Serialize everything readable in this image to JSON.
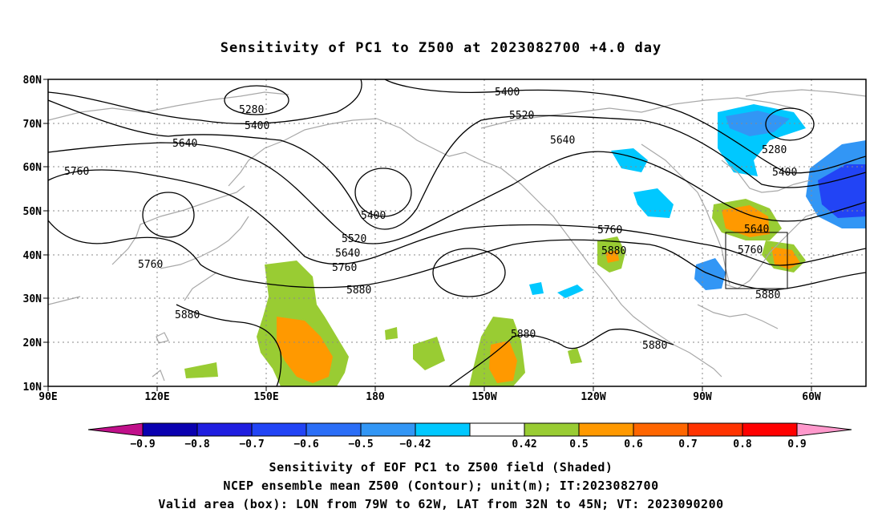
{
  "title": "Sensitivity of PC1 to Z500 at 2023082700 +4.0 day",
  "lat_labels": [
    "80N",
    "70N",
    "60N",
    "50N",
    "40N",
    "30N",
    "20N",
    "10N"
  ],
  "lon_labels": [
    "90E",
    "120E",
    "150E",
    "180",
    "150W",
    "120W",
    "90W",
    "60W"
  ],
  "contour_labels": {
    "c5280a": "5280",
    "c5400a": "5400",
    "c5640a": "5640",
    "c5760a": "5760",
    "c5400top": "5400",
    "c5520top": "5520",
    "c5640b": "5640",
    "c5400b": "5400",
    "c5520b": "5520",
    "c5640c": "5640",
    "c5760b": "5760",
    "c5880a": "5880",
    "c5760c": "5760",
    "c5880b": "5880",
    "c5880c": "5880",
    "c5880d": "5880",
    "c5760d": "5760",
    "c5880e": "5880",
    "c5280b": "5280",
    "c5400c": "5400",
    "c5640d": "5640",
    "c5760e": "5760",
    "c5880f": "5880"
  },
  "colorbar": {
    "labels": [
      "-0.9",
      "-0.8",
      "-0.7",
      "-0.6",
      "-0.5",
      "-0.42",
      "0.42",
      "0.5",
      "0.6",
      "0.7",
      "0.8",
      "0.9"
    ],
    "colors": [
      "#0a00b0",
      "#1f1ee0",
      "#2244f5",
      "#2b6ef7",
      "#3296f5",
      "#00c8ff",
      "#ffffff",
      "#99cc33",
      "#ff9900",
      "#ff6600",
      "#ff3300",
      "#ff0000"
    ],
    "low_arrow_color": "#c0108a",
    "high_arrow_color": "#ff99cc"
  },
  "caption": {
    "line1": "Sensitivity of EOF PC1 to Z500 field (Shaded)",
    "line2": "NCEP ensemble mean Z500 (Contour); unit(m); IT:2023082700",
    "line3": "Valid area (box): LON from 79W to 62W, LAT from 32N to 45N; VT: 2023090200"
  }
}
